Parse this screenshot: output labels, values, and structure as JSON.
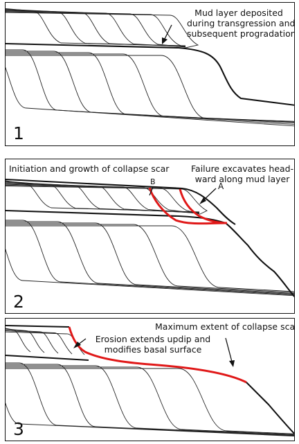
{
  "panel1": {
    "number": "1",
    "note_line1": "Mud layer deposited",
    "note_line2": "during transgression and",
    "note_line3": "subsequent progradation"
  },
  "panel2": {
    "number": "2",
    "title": "Initiation and growth of collapse scar",
    "note_line1": "Failure excavates head-",
    "note_line2": "ward along mud layer",
    "label_a": "A",
    "label_b": "B"
  },
  "panel3": {
    "number": "3",
    "title": "Maximum extent of collapse scar",
    "note_line1": "Erosion extends updip and",
    "note_line2": "modifies basal surface"
  },
  "colors": {
    "scar": "#e01818",
    "line": "#222222"
  }
}
